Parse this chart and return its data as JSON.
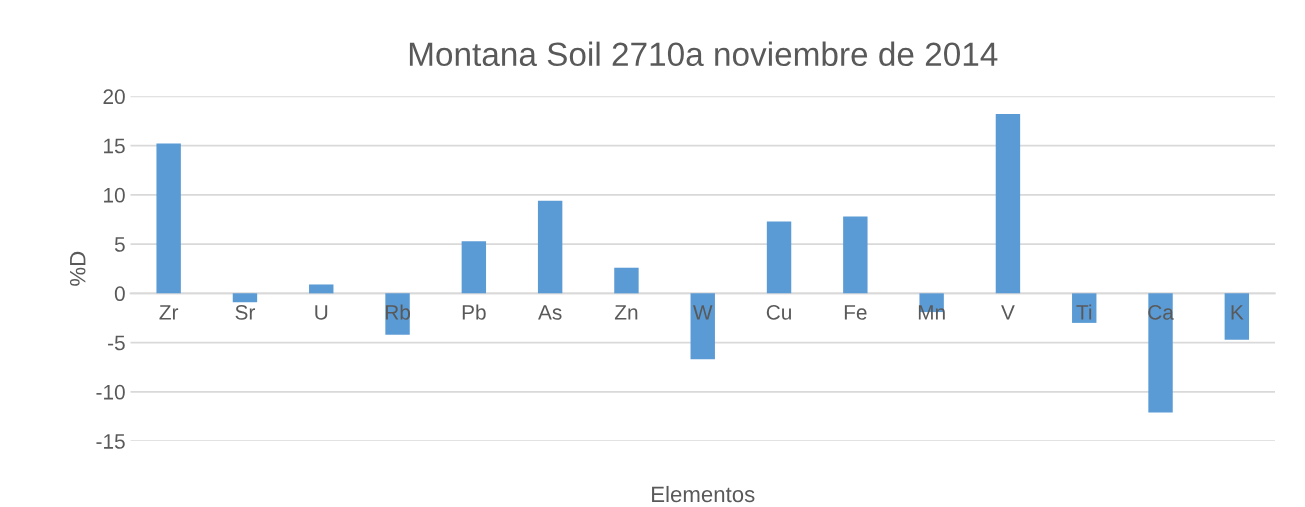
{
  "chart_data": {
    "type": "bar",
    "title": "Montana Soil 2710a noviembre de 2014",
    "xlabel": "Elementos",
    "ylabel": "%D",
    "categories": [
      "Zr",
      "Sr",
      "U",
      "Rb",
      "Pb",
      "As",
      "Zn",
      "W",
      "Cu",
      "Fe",
      "Mn",
      "V",
      "Ti",
      "Ca",
      "K"
    ],
    "values": [
      15.2,
      -0.9,
      0.9,
      -4.2,
      5.3,
      9.4,
      2.6,
      -6.7,
      7.3,
      7.8,
      -1.9,
      18.2,
      -3.0,
      -12.1,
      -4.7
    ],
    "color": "#5b9bd5",
    "ylim": [
      -15,
      20
    ],
    "yticks": [
      -15,
      -10,
      -5,
      0,
      5,
      10,
      15,
      20
    ],
    "grid": "y",
    "legend": false
  }
}
